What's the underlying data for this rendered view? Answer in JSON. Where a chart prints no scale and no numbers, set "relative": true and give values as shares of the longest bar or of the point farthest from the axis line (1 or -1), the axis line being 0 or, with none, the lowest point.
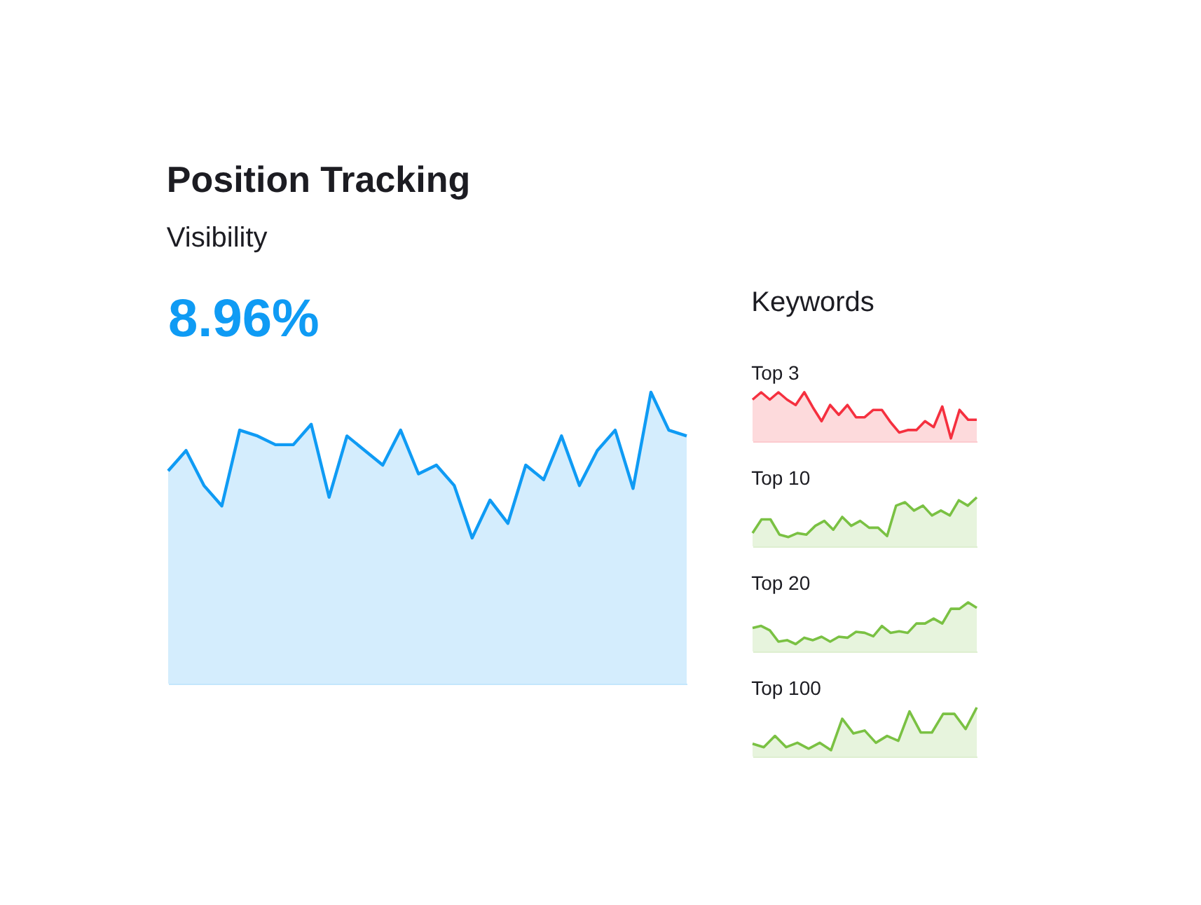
{
  "chart_data": [
    {
      "type": "area",
      "title": "Position Tracking",
      "subtitle": "Visibility",
      "annotations": [
        "8.96%"
      ],
      "relative": true,
      "categories": [
        null,
        null,
        null,
        null,
        null,
        null,
        null,
        null,
        null,
        null,
        null,
        null,
        null,
        null,
        null,
        null,
        null,
        null,
        null,
        null,
        null,
        null,
        null,
        null,
        null,
        null,
        null,
        null,
        null,
        null
      ],
      "series": [
        {
          "color": "#0f9bf4",
          "values": [
            0.73,
            0.8,
            0.68,
            0.61,
            0.87,
            0.85,
            0.82,
            0.82,
            0.89,
            0.64,
            0.85,
            0.8,
            0.75,
            0.87,
            0.72,
            0.75,
            0.68,
            0.5,
            0.63,
            0.55,
            0.75,
            0.7,
            0.85,
            0.68,
            0.8,
            0.87,
            0.67,
            1.0,
            0.87,
            0.85
          ]
        }
      ]
    },
    {
      "type": "area",
      "title": "Keywords",
      "subtitle": "Top 3",
      "relative": true,
      "categories": [
        null,
        null,
        null,
        null,
        null,
        null,
        null,
        null,
        null,
        null,
        null,
        null,
        null,
        null,
        null,
        null,
        null,
        null,
        null,
        null,
        null,
        null,
        null,
        null,
        null,
        null,
        null
      ],
      "series": [
        {
          "color": "#f5303f",
          "values": [
            0.85,
            1,
            0.85,
            1,
            0.85,
            0.74,
            1,
            0.69,
            0.41,
            0.74,
            0.54,
            0.74,
            0.49,
            0.49,
            0.64,
            0.64,
            0.39,
            0.18,
            0.23,
            0.23,
            0.41,
            0.29,
            0.71,
            0.06,
            0.64,
            0.44,
            0.44
          ]
        }
      ]
    },
    {
      "type": "area",
      "subtitle": "Top 10",
      "relative": true,
      "categories": [
        null,
        null,
        null,
        null,
        null,
        null,
        null,
        null,
        null,
        null,
        null,
        null,
        null,
        null,
        null,
        null,
        null,
        null,
        null,
        null,
        null,
        null,
        null,
        null,
        null,
        null
      ],
      "series": [
        {
          "color": "#7ac143",
          "values": [
            0.27,
            0.55,
            0.55,
            0.24,
            0.19,
            0.27,
            0.24,
            0.42,
            0.52,
            0.34,
            0.6,
            0.42,
            0.52,
            0.38,
            0.38,
            0.21,
            0.83,
            0.9,
            0.73,
            0.83,
            0.63,
            0.73,
            0.63,
            0.94,
            0.83,
            1
          ]
        }
      ]
    },
    {
      "type": "area",
      "subtitle": "Top 20",
      "relative": true,
      "categories": [
        null,
        null,
        null,
        null,
        null,
        null,
        null,
        null,
        null,
        null,
        null,
        null,
        null,
        null,
        null,
        null,
        null,
        null,
        null,
        null,
        null,
        null,
        null,
        null,
        null,
        null,
        null
      ],
      "series": [
        {
          "color": "#7ac143",
          "values": [
            0.48,
            0.52,
            0.43,
            0.2,
            0.23,
            0.15,
            0.28,
            0.23,
            0.3,
            0.2,
            0.3,
            0.28,
            0.4,
            0.38,
            0.31,
            0.52,
            0.38,
            0.41,
            0.38,
            0.57,
            0.57,
            0.67,
            0.57,
            0.87,
            0.87,
            1,
            0.89
          ]
        }
      ]
    },
    {
      "type": "area",
      "subtitle": "Top 100",
      "relative": true,
      "categories": [
        null,
        null,
        null,
        null,
        null,
        null,
        null,
        null,
        null,
        null,
        null,
        null,
        null,
        null,
        null,
        null,
        null,
        null,
        null,
        null,
        null
      ],
      "series": [
        {
          "color": "#7ac143",
          "values": [
            0.26,
            0.19,
            0.42,
            0.19,
            0.28,
            0.16,
            0.28,
            0.13,
            0.77,
            0.47,
            0.53,
            0.28,
            0.42,
            0.32,
            0.92,
            0.49,
            0.49,
            0.87,
            0.87,
            0.56,
            1
          ]
        }
      ]
    }
  ]
}
